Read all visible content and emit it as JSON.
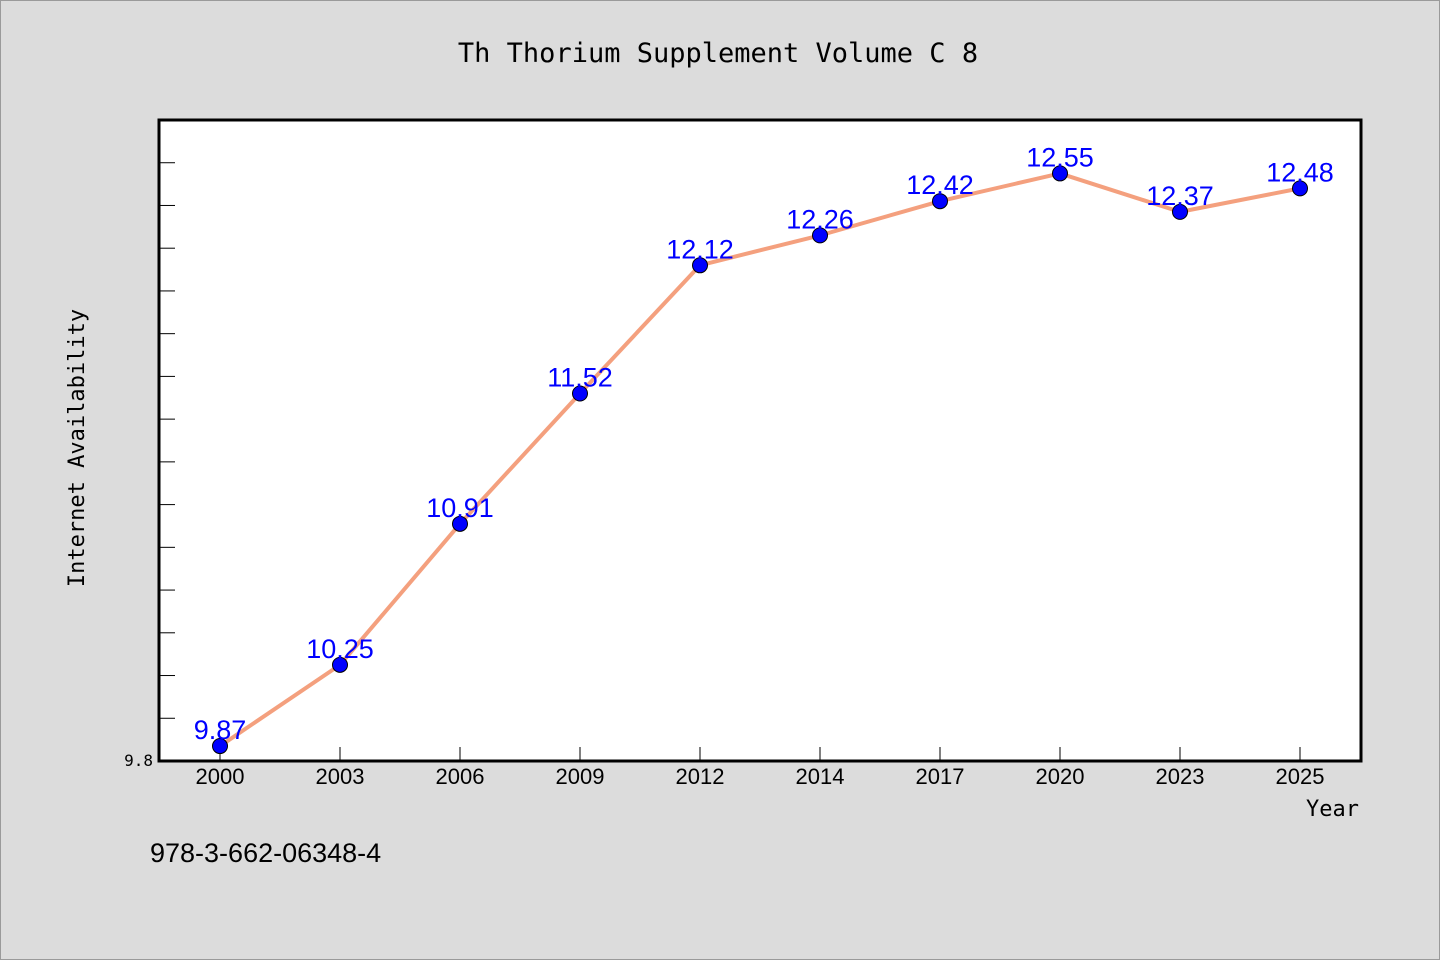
{
  "chart_data": {
    "type": "line",
    "title": "Th Thorium Supplement Volume C 8",
    "xlabel": "Year",
    "ylabel": "Internet Availability",
    "categories": [
      "2000",
      "2003",
      "2006",
      "2009",
      "2012",
      "2014",
      "2017",
      "2020",
      "2023",
      "2025"
    ],
    "series": [
      {
        "values": [
          9.87,
          10.25,
          10.91,
          11.52,
          12.12,
          12.26,
          12.42,
          12.55,
          12.37,
          12.48
        ]
      }
    ],
    "data_labels": [
      "9.87",
      "10.25",
      "10.91",
      "11.52",
      "12.12",
      "12.26",
      "12.42",
      "12.55",
      "12.37",
      "12.48"
    ],
    "ylim": [
      9.8,
      12.8
    ],
    "y_tick_labels": [
      "9.8"
    ],
    "grid": false,
    "line_color": "#f4a07e",
    "marker_color": "#0000ff",
    "label_color": "#0000ff"
  },
  "footer": {
    "isbn": "978-3-662-06348-4"
  }
}
